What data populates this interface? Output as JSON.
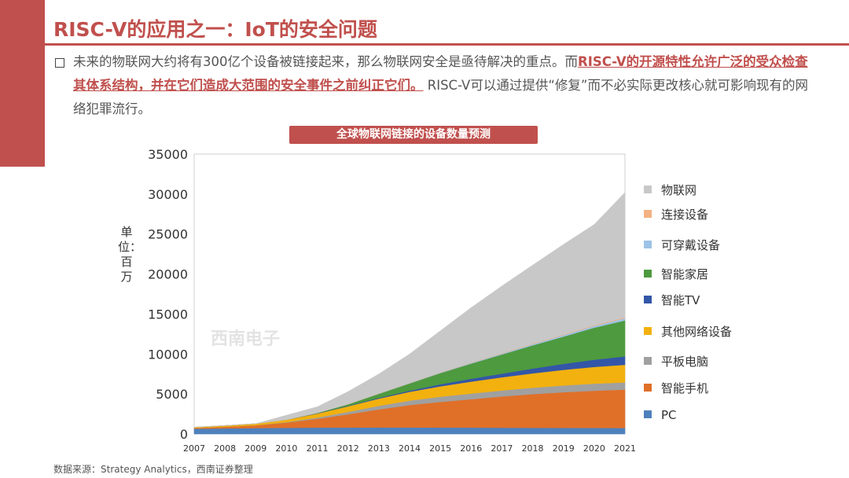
{
  "slide": {
    "title": "RISC-V的应用之一：IoT的安全问题",
    "paragraph": {
      "part1": "未来的物联网大约将有300亿个设备被链接起来，那么物联网安全是亟待解决的重点。而",
      "highlight": "RISC-V的开源特性允许广泛的受众检查其体系结构，并在它们造成大范围的安全事件之前纠正它们。",
      "part2": " RISC-V可以通过提供“修复”而不必实际更改核心就可影响现有的网络犯罪流行。"
    },
    "source": "数据来源：Strategy Analytics，西南证券整理"
  },
  "chart_data": {
    "type": "area",
    "stacked": true,
    "title": "全球物联网链接的设备数量预测",
    "ylabel": "单位：百万",
    "xlabel": "",
    "watermark": "西南电子",
    "x": [
      "2007",
      "2008",
      "2009",
      "2010",
      "2011",
      "2012",
      "2013",
      "2014",
      "2015",
      "2016",
      "2017",
      "2018",
      "2019",
      "2020",
      "2021"
    ],
    "ylim": [
      0,
      35000
    ],
    "yticks": [
      0,
      5000,
      10000,
      15000,
      20000,
      25000,
      30000,
      35000
    ],
    "series": [
      {
        "name": "PC",
        "color": "#4f81bd",
        "values": [
          650,
          700,
          740,
          780,
          800,
          810,
          820,
          820,
          810,
          800,
          790,
          780,
          770,
          760,
          750
        ]
      },
      {
        "name": "智能手机",
        "color": "#e07028",
        "values": [
          100,
          200,
          350,
          650,
          1100,
          1650,
          2250,
          2800,
          3200,
          3550,
          3900,
          4200,
          4450,
          4650,
          4800
        ]
      },
      {
        "name": "平板电脑",
        "color": "#a0a0a0",
        "values": [
          0,
          0,
          0,
          50,
          150,
          300,
          450,
          550,
          650,
          700,
          750,
          800,
          850,
          880,
          900
        ]
      },
      {
        "name": "其他网络设备",
        "color": "#f2b10f",
        "values": [
          100,
          150,
          200,
          300,
          500,
          700,
          900,
          1100,
          1300,
          1500,
          1650,
          1800,
          1950,
          2100,
          2200
        ]
      },
      {
        "name": "智能TV",
        "color": "#3356a8",
        "values": [
          0,
          0,
          0,
          10,
          30,
          60,
          100,
          150,
          250,
          350,
          450,
          600,
          750,
          900,
          1050
        ]
      },
      {
        "name": "智能家居",
        "color": "#4e9a3e",
        "values": [
          0,
          0,
          0,
          0,
          50,
          200,
          500,
          900,
          1400,
          1900,
          2400,
          2900,
          3400,
          4000,
          4500
        ]
      },
      {
        "name": "可穿戴设备",
        "color": "#9dc3e6",
        "values": [
          0,
          0,
          0,
          0,
          0,
          10,
          20,
          40,
          60,
          90,
          120,
          150,
          190,
          230,
          270
        ]
      },
      {
        "name": "连接设备",
        "color": "#f4b183",
        "values": [
          0,
          0,
          0,
          0,
          0,
          10,
          20,
          30,
          40,
          50,
          60,
          70,
          80,
          90,
          100
        ]
      },
      {
        "name": "物联网",
        "color": "#c8c8c8",
        "values": [
          0,
          0,
          0,
          560,
          770,
          1560,
          2440,
          3610,
          5190,
          6860,
          8380,
          9820,
          11260,
          12590,
          15630
        ]
      }
    ]
  }
}
